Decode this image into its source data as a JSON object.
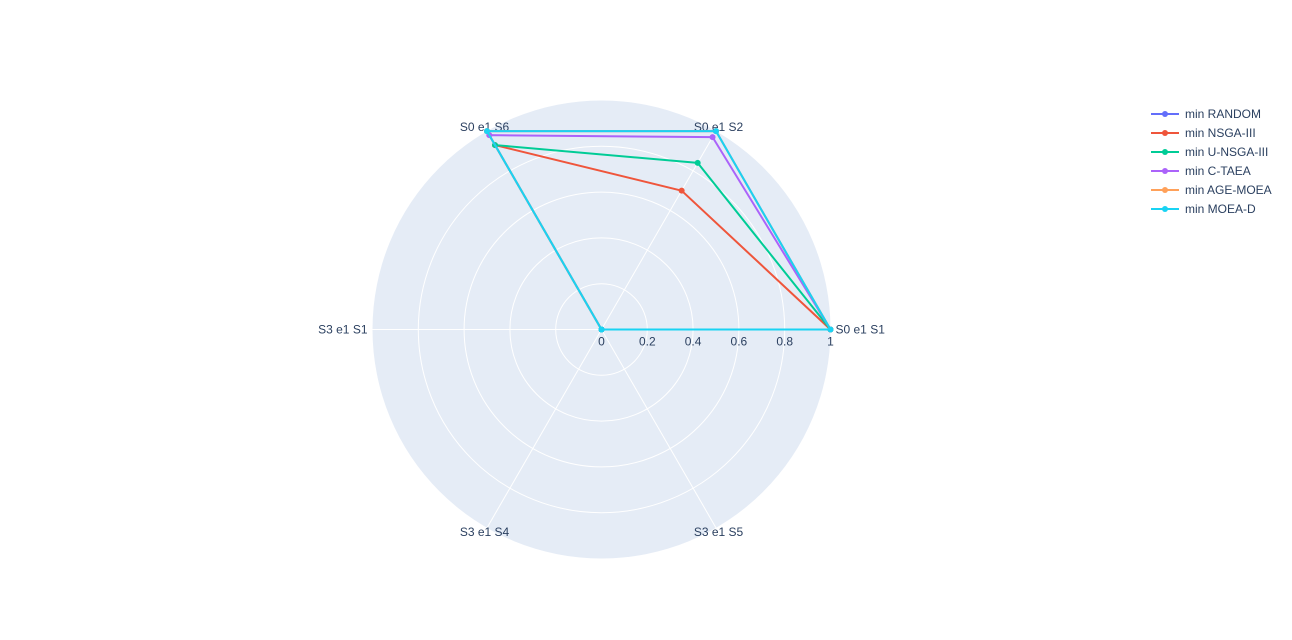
{
  "chart_data": {
    "type": "radar",
    "categories": [
      "S0 e1 S1",
      "S0 e1 S2",
      "S0 e1 S6",
      "S3 e1 S1",
      "S3 e1 S4",
      "S3 e1 S5"
    ],
    "radial_range": [
      0,
      1
    ],
    "radial_ticks": [
      "0",
      "0.2",
      "0.4",
      "0.6",
      "0.8",
      "1"
    ],
    "grid": true,
    "legend_position": "top-right",
    "series": [
      {
        "name": "min RANDOM",
        "color": "#636efa",
        "values": [
          1,
          1,
          1,
          0,
          0,
          0
        ]
      },
      {
        "name": "min NSGA-III",
        "color": "#ef553b",
        "values": [
          1,
          0.7,
          0.93,
          0,
          0,
          0
        ]
      },
      {
        "name": "min U-NSGA-III",
        "color": "#00cc96",
        "values": [
          1,
          0.84,
          0.93,
          0,
          0,
          0
        ]
      },
      {
        "name": "min C-TAEA",
        "color": "#ab63fa",
        "values": [
          1,
          0.97,
          0.98,
          0,
          0,
          0
        ]
      },
      {
        "name": "min AGE-MOEA",
        "color": "#ffa15a",
        "values": [
          1,
          1,
          1,
          0,
          0,
          0
        ]
      },
      {
        "name": "min MOEA-D",
        "color": "#19d3f3",
        "values": [
          1,
          1,
          1,
          0,
          0,
          0
        ]
      }
    ]
  }
}
